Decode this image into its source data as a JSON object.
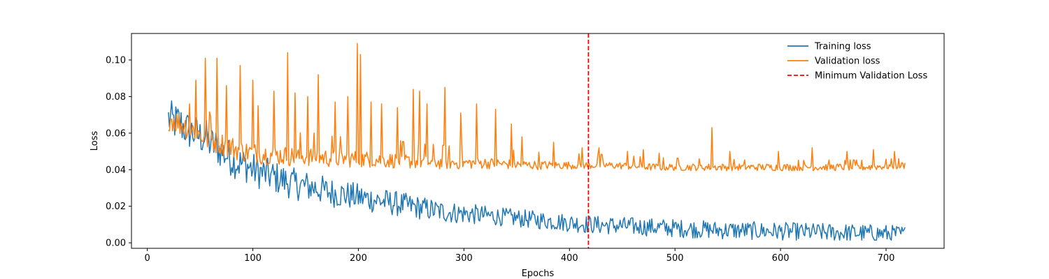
{
  "chart_data": {
    "type": "line",
    "title": "",
    "xlabel": "Epochs",
    "ylabel": "Loss",
    "xlim": [
      -15,
      755
    ],
    "ylim": [
      -0.003,
      0.1145
    ],
    "xticks": [
      0,
      100,
      200,
      300,
      400,
      500,
      600,
      700
    ],
    "yticks": [
      0.0,
      0.02,
      0.04,
      0.06,
      0.08,
      0.1
    ],
    "ytick_format": 2,
    "grid": false,
    "legend_position": "top-right",
    "x_start": 20,
    "x_end": 718,
    "series": [
      {
        "name": "Training loss",
        "color": "#1f77b4",
        "style": "solid",
        "points": [
          [
            20,
            0.068
          ],
          [
            25,
            0.066
          ],
          [
            30,
            0.066
          ],
          [
            35,
            0.063
          ],
          [
            40,
            0.061
          ],
          [
            45,
            0.06
          ],
          [
            50,
            0.058
          ],
          [
            55,
            0.058
          ],
          [
            60,
            0.054
          ],
          [
            65,
            0.053
          ],
          [
            70,
            0.05
          ],
          [
            75,
            0.048
          ],
          [
            80,
            0.046
          ],
          [
            85,
            0.044
          ],
          [
            90,
            0.043
          ],
          [
            95,
            0.042
          ],
          [
            100,
            0.04
          ],
          [
            110,
            0.038
          ],
          [
            120,
            0.036
          ],
          [
            130,
            0.034
          ],
          [
            140,
            0.032
          ],
          [
            150,
            0.031
          ],
          [
            160,
            0.03
          ],
          [
            170,
            0.028
          ],
          [
            180,
            0.027
          ],
          [
            190,
            0.026
          ],
          [
            200,
            0.025
          ],
          [
            220,
            0.023
          ],
          [
            240,
            0.021
          ],
          [
            260,
            0.019
          ],
          [
            280,
            0.017
          ],
          [
            300,
            0.016
          ],
          [
            320,
            0.015
          ],
          [
            340,
            0.014
          ],
          [
            360,
            0.013
          ],
          [
            380,
            0.012
          ],
          [
            400,
            0.011
          ],
          [
            420,
            0.01
          ],
          [
            440,
            0.0095
          ],
          [
            460,
            0.009
          ],
          [
            480,
            0.0085
          ],
          [
            500,
            0.008
          ],
          [
            540,
            0.007
          ],
          [
            580,
            0.0065
          ],
          [
            620,
            0.006
          ],
          [
            660,
            0.0055
          ],
          [
            700,
            0.005
          ],
          [
            718,
            0.0045
          ]
        ]
      },
      {
        "name": "Validation loss",
        "color": "#ff7f0e",
        "style": "solid",
        "points": [
          [
            20,
            0.067
          ],
          [
            25,
            0.066
          ],
          [
            30,
            0.064
          ],
          [
            35,
            0.063
          ],
          [
            40,
            0.061
          ],
          [
            45,
            0.06
          ],
          [
            50,
            0.058
          ],
          [
            55,
            0.056
          ],
          [
            60,
            0.055
          ],
          [
            70,
            0.053
          ],
          [
            80,
            0.051
          ],
          [
            90,
            0.049
          ],
          [
            100,
            0.048
          ],
          [
            120,
            0.047
          ],
          [
            140,
            0.046
          ],
          [
            160,
            0.046
          ],
          [
            180,
            0.045
          ],
          [
            200,
            0.045
          ],
          [
            240,
            0.044
          ],
          [
            280,
            0.043
          ],
          [
            320,
            0.043
          ],
          [
            360,
            0.042
          ],
          [
            400,
            0.042
          ],
          [
            440,
            0.042
          ],
          [
            480,
            0.041
          ],
          [
            520,
            0.041
          ],
          [
            560,
            0.041
          ],
          [
            600,
            0.041
          ],
          [
            640,
            0.041
          ],
          [
            680,
            0.041
          ],
          [
            718,
            0.042
          ]
        ],
        "spikes": [
          [
            40,
            0.076
          ],
          [
            46,
            0.089
          ],
          [
            55,
            0.101
          ],
          [
            60,
            0.069
          ],
          [
            66,
            0.101
          ],
          [
            75,
            0.086
          ],
          [
            88,
            0.097
          ],
          [
            100,
            0.089
          ],
          [
            105,
            0.075
          ],
          [
            120,
            0.083
          ],
          [
            133,
            0.104
          ],
          [
            140,
            0.082
          ],
          [
            152,
            0.08
          ],
          [
            162,
            0.092
          ],
          [
            178,
            0.077
          ],
          [
            190,
            0.08
          ],
          [
            199,
            0.109
          ],
          [
            202,
            0.103
          ],
          [
            212,
            0.077
          ],
          [
            222,
            0.076
          ],
          [
            237,
            0.074
          ],
          [
            252,
            0.084
          ],
          [
            258,
            0.083
          ],
          [
            265,
            0.076
          ],
          [
            282,
            0.085
          ],
          [
            297,
            0.071
          ],
          [
            312,
            0.076
          ],
          [
            330,
            0.073
          ],
          [
            345,
            0.065
          ],
          [
            355,
            0.058
          ],
          [
            385,
            0.055
          ],
          [
            412,
            0.052
          ],
          [
            428,
            0.052
          ],
          [
            455,
            0.05
          ],
          [
            470,
            0.051
          ],
          [
            485,
            0.049
          ],
          [
            535,
            0.063
          ],
          [
            552,
            0.05
          ],
          [
            598,
            0.05
          ],
          [
            630,
            0.052
          ],
          [
            663,
            0.05
          ],
          [
            688,
            0.051
          ],
          [
            708,
            0.05
          ]
        ]
      },
      {
        "name": "Minimum Validation Loss",
        "color": "#ff0000",
        "style": "dashed",
        "x": 418
      }
    ]
  }
}
